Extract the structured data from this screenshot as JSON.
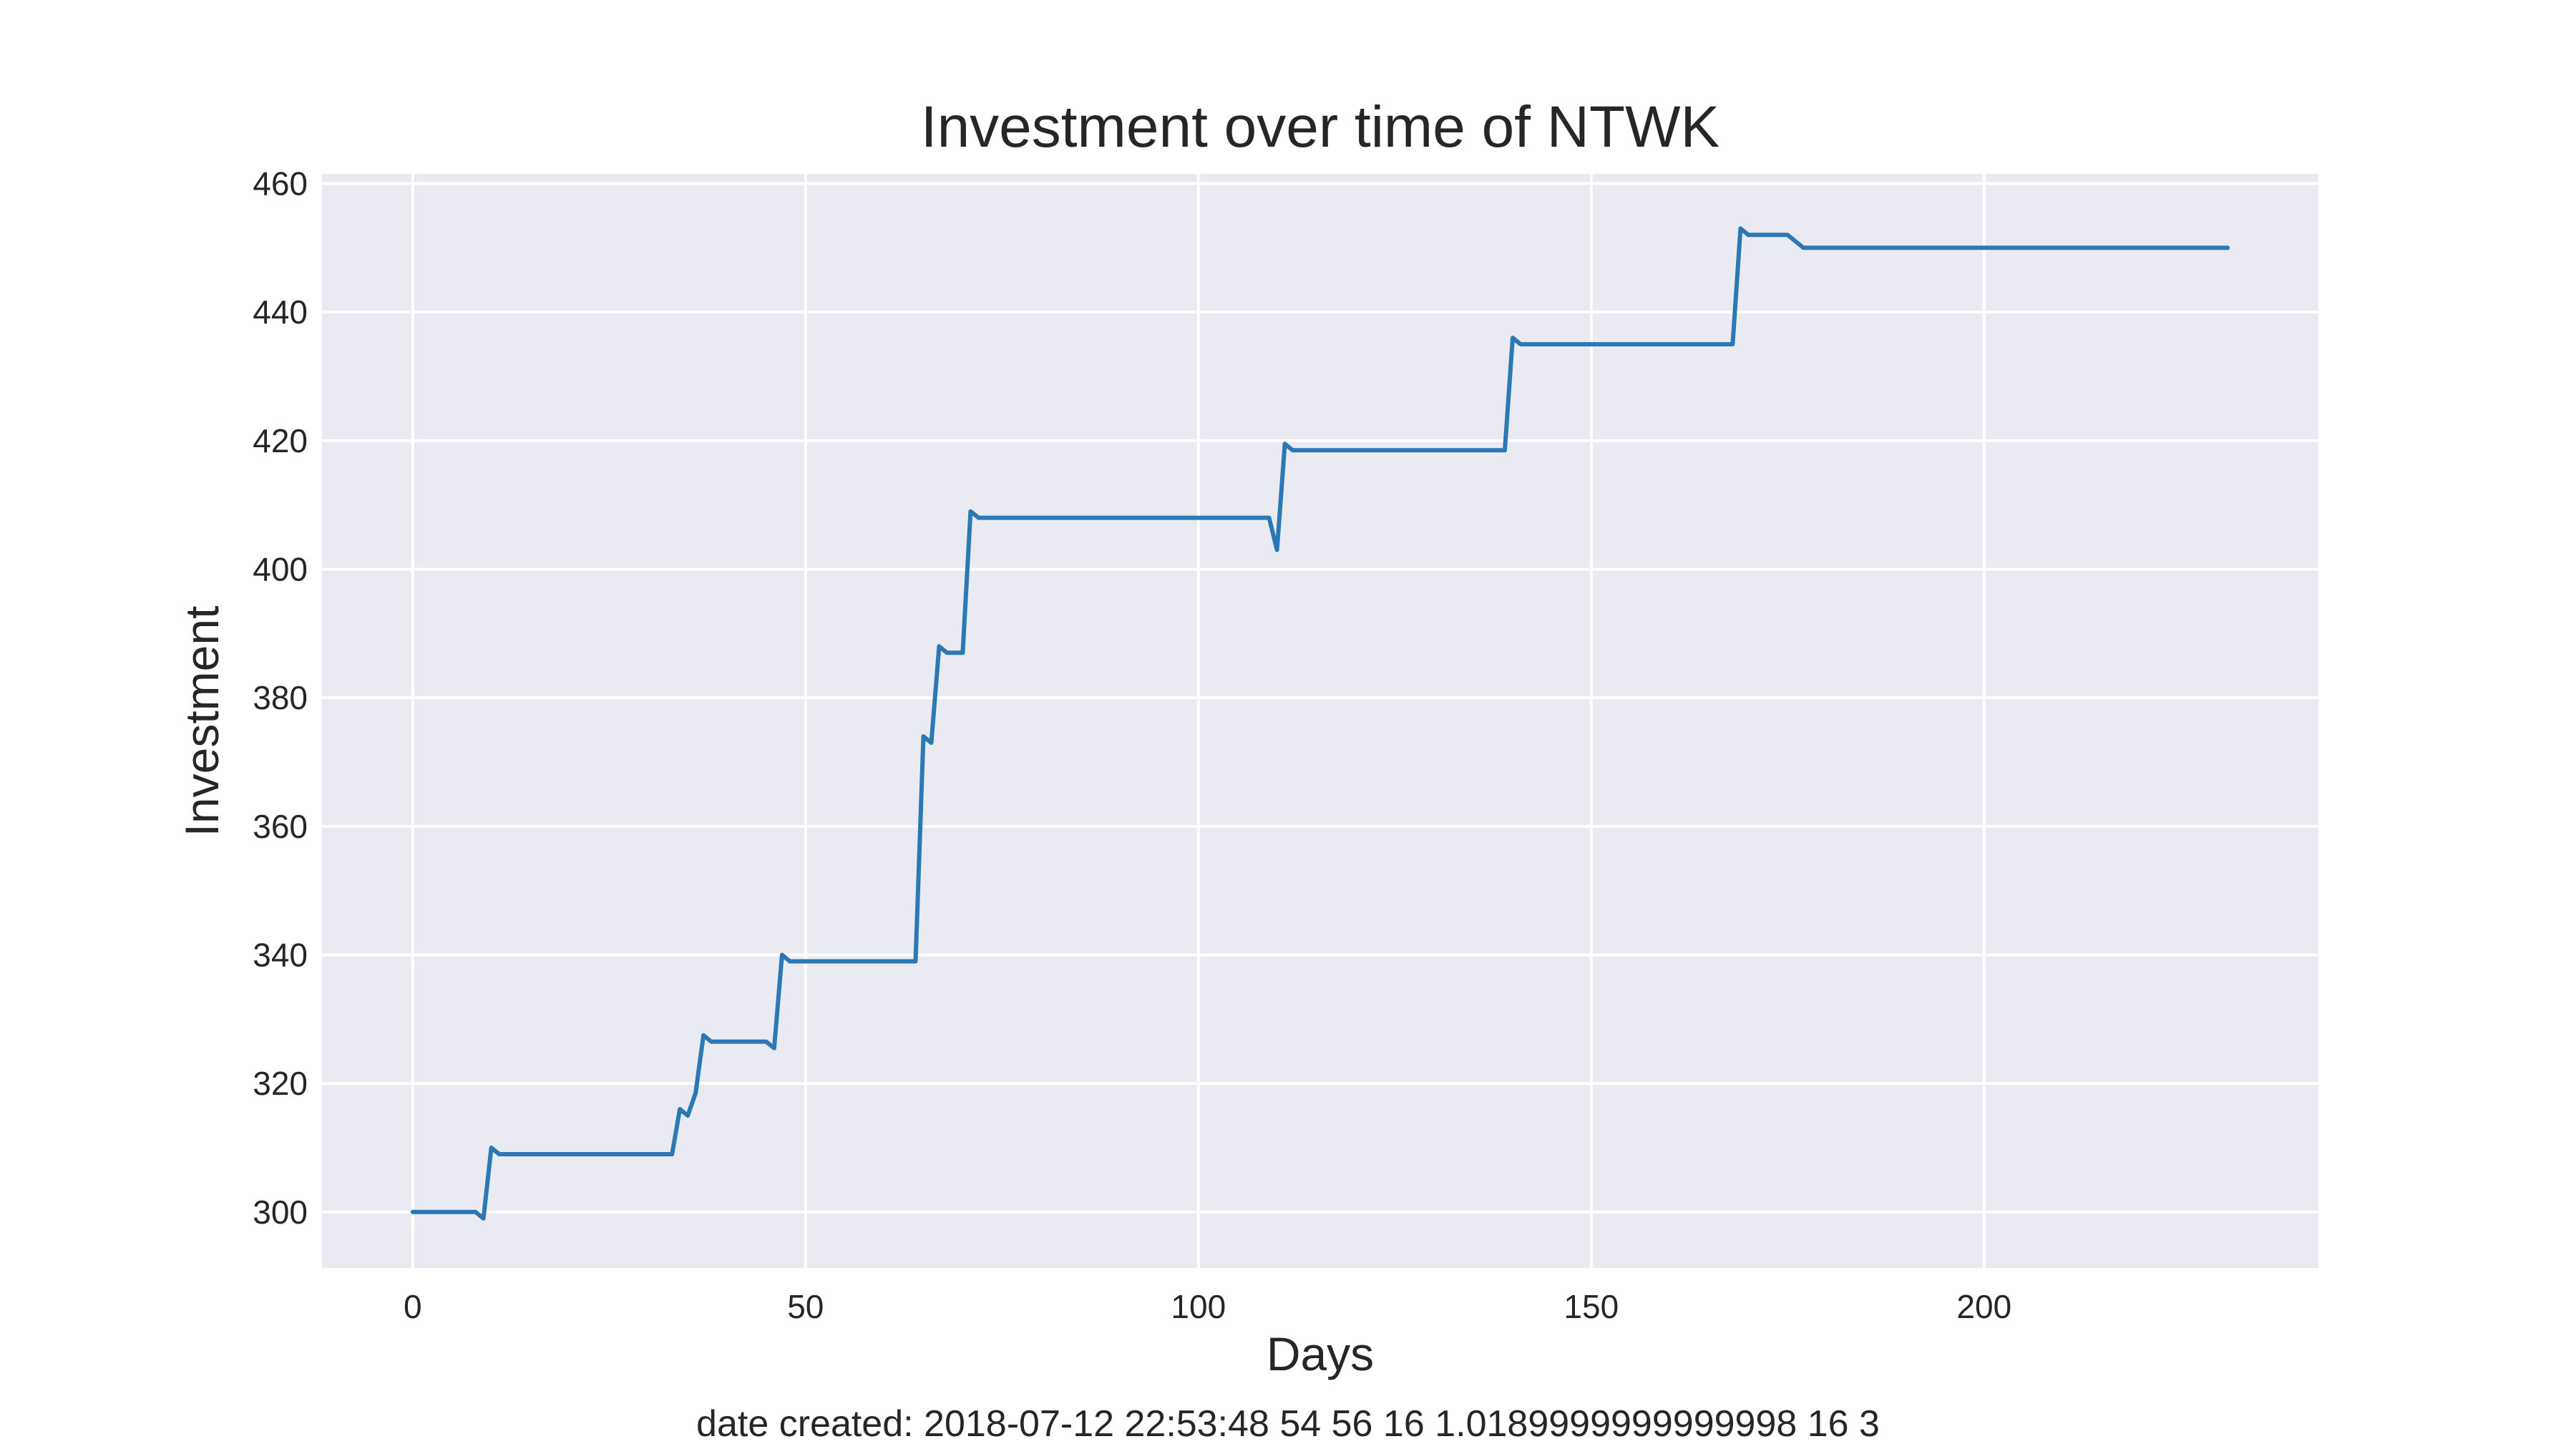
{
  "chart_data": {
    "type": "line",
    "title": "Investment over time of NTWK",
    "xlabel": "Days",
    "ylabel": "Investment",
    "footer": "date created: 2018-07-12 22:53:48 54 56 16 1.0189999999999998 16 3",
    "xlim": [
      -11.55,
      242.55
    ],
    "ylim": [
      291.3,
      461.5
    ],
    "xticks": [
      0,
      50,
      100,
      150,
      200
    ],
    "yticks": [
      300,
      320,
      340,
      360,
      380,
      400,
      420,
      440,
      460
    ],
    "grid": true,
    "series_color": "#2a78b4",
    "background": "#eaeaf2",
    "series": [
      {
        "x": [
          0,
          8,
          9,
          10,
          11,
          33,
          34,
          35,
          36,
          37,
          38,
          45,
          46,
          47,
          48,
          64,
          65,
          66,
          67,
          68,
          70,
          71,
          72,
          109,
          110,
          111,
          112,
          139,
          140,
          141,
          168,
          169,
          170,
          175,
          177,
          231
        ],
        "y": [
          300,
          300,
          299,
          310,
          309,
          309,
          316,
          315,
          318.5,
          327.5,
          326.5,
          326.5,
          325.5,
          340,
          339,
          339,
          374,
          373,
          388,
          387,
          387,
          409,
          408,
          408,
          403,
          419.5,
          418.5,
          418.5,
          436,
          435,
          435,
          453,
          452,
          452,
          450,
          450
        ]
      }
    ]
  }
}
